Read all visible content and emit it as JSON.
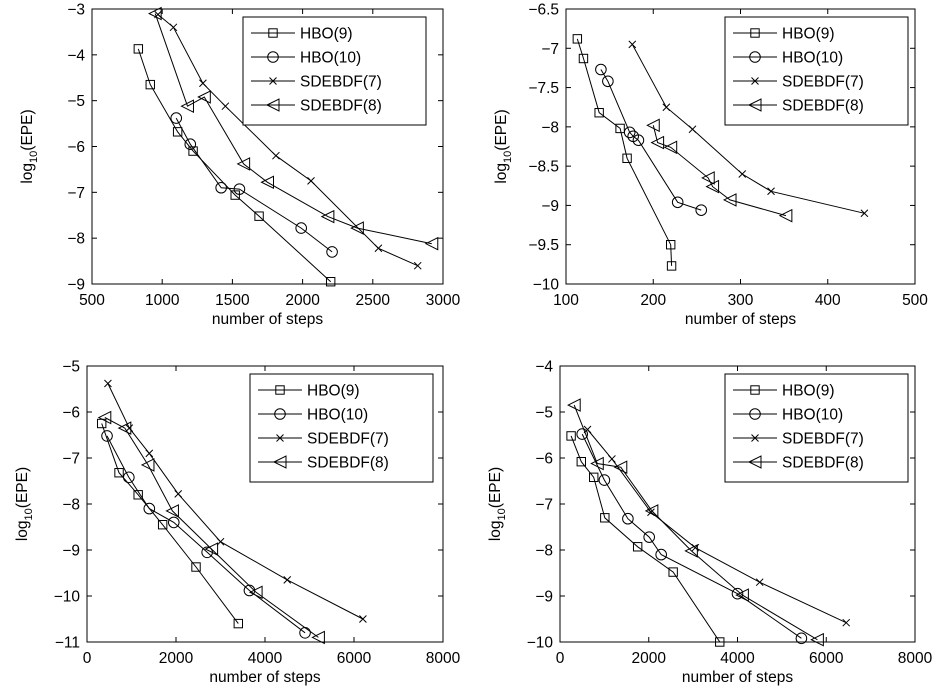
{
  "chart_data": [
    {
      "type": "line",
      "title": "",
      "xlabel": "number of steps",
      "ylabel": "log10(EPE)",
      "xlim": [
        500,
        3000
      ],
      "ylim": [
        -9,
        -3
      ],
      "xticks": [
        500,
        1000,
        1500,
        2000,
        2500,
        3000
      ],
      "yticks": [
        -9,
        -8,
        -7,
        -6,
        -5,
        -4,
        -3
      ],
      "legend_position": "top-right",
      "series": [
        {
          "name": "HBO(9)",
          "marker": "square",
          "points": [
            [
              830,
              -3.87
            ],
            [
              915,
              -4.65
            ],
            [
              1110,
              -5.68
            ],
            [
              1220,
              -6.1
            ],
            [
              1520,
              -7.06
            ],
            [
              1690,
              -7.52
            ],
            [
              2200,
              -8.95
            ]
          ]
        },
        {
          "name": "HBO(10)",
          "marker": "circle",
          "points": [
            [
              1100,
              -5.38
            ],
            [
              1200,
              -5.95
            ],
            [
              1420,
              -6.9
            ],
            [
              1550,
              -6.93
            ],
            [
              1990,
              -7.78
            ],
            [
              2210,
              -8.3
            ]
          ]
        },
        {
          "name": "SDEBDF(7)",
          "marker": "x",
          "points": [
            [
              970,
              -3.12
            ],
            [
              1080,
              -3.4
            ],
            [
              1290,
              -4.62
            ],
            [
              1450,
              -5.12
            ],
            [
              1810,
              -6.2
            ],
            [
              2060,
              -6.75
            ],
            [
              2540,
              -8.22
            ],
            [
              2820,
              -8.6
            ]
          ]
        },
        {
          "name": "SDEBDF(8)",
          "marker": "triangle-left",
          "points": [
            [
              950,
              -3.1
            ],
            [
              1180,
              -5.12
            ],
            [
              1300,
              -4.92
            ],
            [
              1580,
              -6.38
            ],
            [
              1750,
              -6.78
            ],
            [
              2180,
              -7.53
            ],
            [
              2390,
              -7.78
            ],
            [
              2920,
              -8.12
            ]
          ]
        }
      ]
    },
    {
      "type": "line",
      "title": "",
      "xlabel": "number of steps",
      "ylabel": "log10(EPE)",
      "xlim": [
        100,
        500
      ],
      "ylim": [
        -10,
        -6.5
      ],
      "xticks": [
        100,
        200,
        300,
        400,
        500
      ],
      "yticks": [
        -10,
        -9.5,
        -9,
        -8.5,
        -8,
        -7.5,
        -7,
        -6.5
      ],
      "legend_position": "top-right",
      "series": [
        {
          "name": "HBO(9)",
          "marker": "square",
          "points": [
            [
              113,
              -6.88
            ],
            [
              120,
              -7.13
            ],
            [
              138,
              -7.82
            ],
            [
              162,
              -8.02
            ],
            [
              170,
              -8.4
            ],
            [
              220,
              -9.5
            ],
            [
              221,
              -9.77
            ]
          ]
        },
        {
          "name": "HBO(10)",
          "marker": "circle",
          "points": [
            [
              140,
              -7.27
            ],
            [
              148,
              -7.42
            ],
            [
              173,
              -8.07
            ],
            [
              177,
              -8.12
            ],
            [
              183,
              -8.17
            ],
            [
              228,
              -8.96
            ],
            [
              255,
              -9.06
            ]
          ]
        },
        {
          "name": "SDEBDF(7)",
          "marker": "x",
          "points": [
            [
              176,
              -6.95
            ],
            [
              215,
              -7.75
            ],
            [
              245,
              -8.03
            ],
            [
              302,
              -8.6
            ],
            [
              335,
              -8.82
            ],
            [
              442,
              -9.1
            ]
          ]
        },
        {
          "name": "SDEBDF(8)",
          "marker": "triangle-left",
          "points": [
            [
              200,
              -7.98
            ],
            [
              205,
              -8.2
            ],
            [
              220,
              -8.26
            ],
            [
              263,
              -8.65
            ],
            [
              268,
              -8.76
            ],
            [
              288,
              -8.93
            ],
            [
              352,
              -9.13
            ]
          ]
        }
      ]
    },
    {
      "type": "line",
      "title": "",
      "xlabel": "number of steps",
      "ylabel": "log10(EPE)",
      "xlim": [
        0,
        8000
      ],
      "ylim": [
        -11,
        -5
      ],
      "xticks": [
        0,
        2000,
        4000,
        6000,
        8000
      ],
      "yticks": [
        -11,
        -10,
        -9,
        -8,
        -7,
        -6,
        -5
      ],
      "legend_position": "top-right",
      "series": [
        {
          "name": "HBO(9)",
          "marker": "square",
          "points": [
            [
              330,
              -6.25
            ],
            [
              720,
              -7.32
            ],
            [
              1150,
              -7.8
            ],
            [
              1700,
              -8.45
            ],
            [
              2450,
              -9.37
            ],
            [
              3400,
              -10.6
            ]
          ]
        },
        {
          "name": "HBO(10)",
          "marker": "circle",
          "points": [
            [
              450,
              -6.52
            ],
            [
              940,
              -7.42
            ],
            [
              1400,
              -8.1
            ],
            [
              1950,
              -8.4
            ],
            [
              2700,
              -9.05
            ],
            [
              3650,
              -9.88
            ],
            [
              4900,
              -10.8
            ]
          ]
        },
        {
          "name": "SDEBDF(7)",
          "marker": "x",
          "points": [
            [
              470,
              -5.38
            ],
            [
              950,
              -6.35
            ],
            [
              1400,
              -6.9
            ],
            [
              2050,
              -7.78
            ],
            [
              3000,
              -8.82
            ],
            [
              4500,
              -9.65
            ],
            [
              6200,
              -10.5
            ]
          ]
        },
        {
          "name": "SDEBDF(8)",
          "marker": "triangle-left",
          "points": [
            [
              400,
              -6.12
            ],
            [
              850,
              -6.35
            ],
            [
              1370,
              -7.15
            ],
            [
              1920,
              -8.15
            ],
            [
              2800,
              -8.98
            ],
            [
              3800,
              -9.92
            ],
            [
              5200,
              -10.9
            ]
          ]
        }
      ]
    },
    {
      "type": "line",
      "title": "",
      "xlabel": "number of steps",
      "ylabel": "log10(EPE)",
      "xlim": [
        0,
        8000
      ],
      "ylim": [
        -10,
        -4
      ],
      "xticks": [
        0,
        2000,
        4000,
        6000,
        8000
      ],
      "yticks": [
        -10,
        -9,
        -8,
        -7,
        -6,
        -5,
        -4
      ],
      "legend_position": "top-right",
      "series": [
        {
          "name": "HBO(9)",
          "marker": "square",
          "points": [
            [
              250,
              -5.52
            ],
            [
              480,
              -6.08
            ],
            [
              760,
              -6.42
            ],
            [
              1010,
              -7.3
            ],
            [
              1750,
              -7.93
            ],
            [
              2550,
              -8.48
            ],
            [
              3600,
              -10.0
            ]
          ]
        },
        {
          "name": "HBO(10)",
          "marker": "circle",
          "points": [
            [
              500,
              -5.48
            ],
            [
              1000,
              -6.48
            ],
            [
              1530,
              -7.32
            ],
            [
              2010,
              -7.72
            ],
            [
              2280,
              -8.1
            ],
            [
              4000,
              -8.95
            ],
            [
              5440,
              -9.92
            ]
          ]
        },
        {
          "name": "SDEBDF(7)",
          "marker": "x",
          "points": [
            [
              620,
              -5.38
            ],
            [
              1170,
              -6.02
            ],
            [
              2050,
              -7.18
            ],
            [
              3050,
              -7.95
            ],
            [
              4500,
              -8.7
            ],
            [
              6450,
              -9.58
            ]
          ]
        },
        {
          "name": "SDEBDF(8)",
          "marker": "triangle-left",
          "points": [
            [
              320,
              -4.85
            ],
            [
              840,
              -6.12
            ],
            [
              1370,
              -6.2
            ],
            [
              2070,
              -7.15
            ],
            [
              2960,
              -8.02
            ],
            [
              4110,
              -8.98
            ],
            [
              5800,
              -9.95
            ]
          ]
        }
      ]
    }
  ]
}
